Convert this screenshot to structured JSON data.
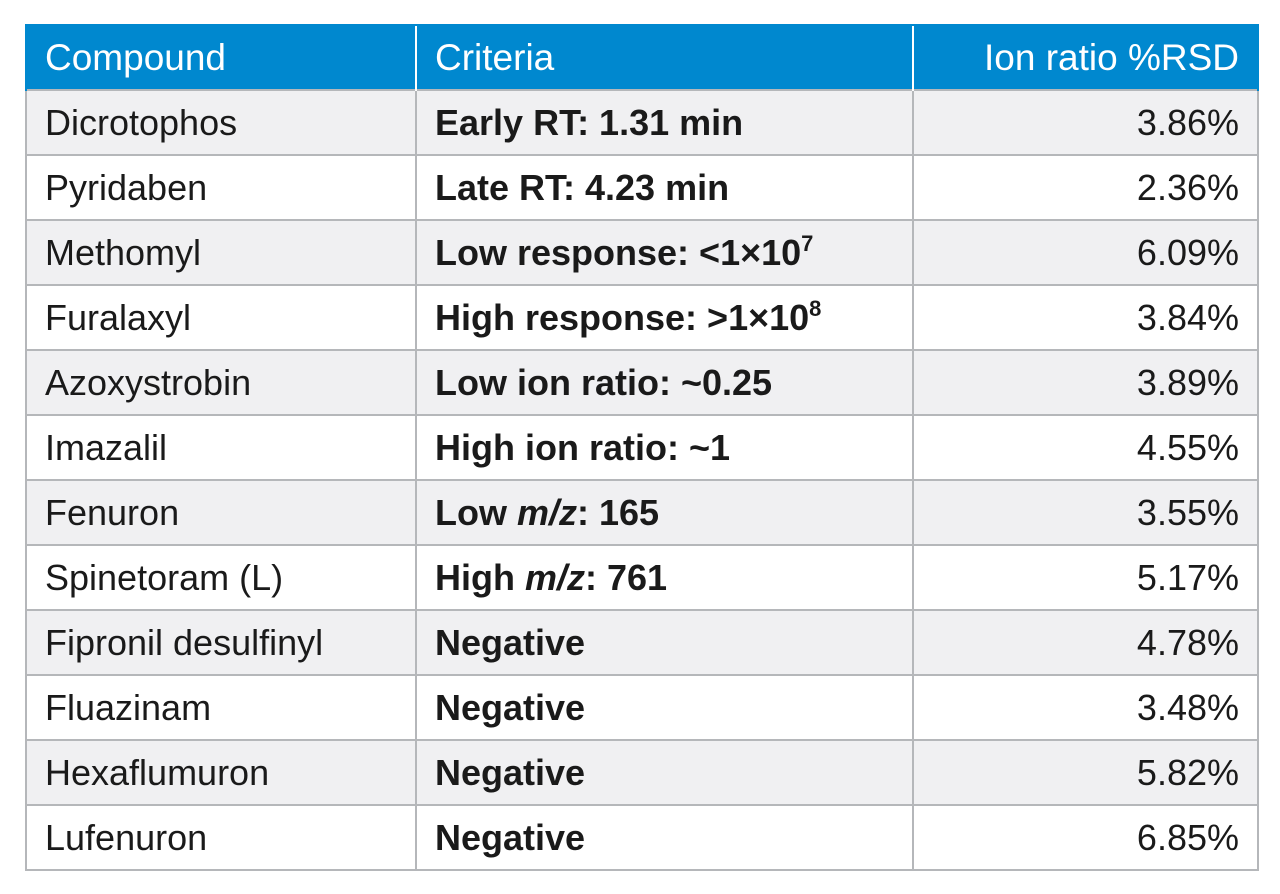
{
  "table": {
    "headers": [
      "Compound",
      "Criteria",
      "Ion ratio %RSD"
    ],
    "rows": [
      {
        "compound": "Dicrotophos",
        "criteria": "Early RT: 1.31 min",
        "rsd": "3.86%"
      },
      {
        "compound": "Pyridaben",
        "criteria": "Late RT: 4.23 min",
        "rsd": "2.36%"
      },
      {
        "compound": "Methomyl",
        "criteria": "Low response: <1×10",
        "criteria_sup": "7",
        "rsd": "6.09%"
      },
      {
        "compound": "Furalaxyl",
        "criteria": "High response: >1×10",
        "criteria_sup": "8",
        "rsd": "3.84%"
      },
      {
        "compound": "Azoxystrobin",
        "criteria": "Low ion ratio: ~0.25",
        "rsd": "3.89%"
      },
      {
        "compound": "Imazalil",
        "criteria": "High ion ratio: ~1",
        "rsd": "4.55%"
      },
      {
        "compound": "Fenuron",
        "criteria_prefix": "Low ",
        "criteria_italic": "m/z",
        "criteria_suffix": ": 165",
        "rsd": "3.55%"
      },
      {
        "compound": "Spinetoram (L)",
        "criteria_prefix": "High ",
        "criteria_italic": "m/z",
        "criteria_suffix": ": 761",
        "rsd": "5.17%"
      },
      {
        "compound": "Fipronil desulfinyl",
        "criteria": "Negative",
        "rsd": "4.78%"
      },
      {
        "compound": "Fluazinam",
        "criteria": "Negative",
        "rsd": "3.48%"
      },
      {
        "compound": "Hexaflumuron",
        "criteria": "Negative",
        "rsd": "5.82%"
      },
      {
        "compound": "Lufenuron",
        "criteria": "Negative",
        "rsd": "6.85%"
      }
    ]
  },
  "colors": {
    "header_bg": "#0088cf",
    "header_text": "#ffffff",
    "row_alt_bg": "#f0f0f2",
    "border": "#b5b7ba"
  }
}
